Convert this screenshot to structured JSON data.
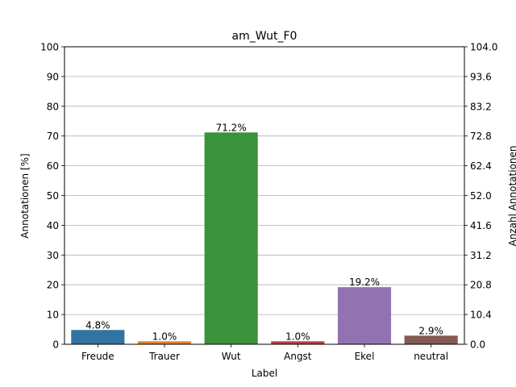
{
  "chart_data": {
    "type": "bar",
    "title": "am_Wut_F0",
    "xlabel": "Label",
    "ylabel": "Annotationen [%]",
    "ylabel_right": "Anzahl Annotationen",
    "categories": [
      "Freude",
      "Trauer",
      "Wut",
      "Angst",
      "Ekel",
      "neutral"
    ],
    "values": [
      4.8,
      1.0,
      71.2,
      1.0,
      19.2,
      2.9
    ],
    "value_labels": [
      "4.8%",
      "1.0%",
      "71.2%",
      "1.0%",
      "19.2%",
      "2.9%"
    ],
    "colors": [
      "#3274a1",
      "#e1812c",
      "#3a923a",
      "#c03d3e",
      "#9372b2",
      "#845b53"
    ],
    "ylim": [
      0,
      100
    ],
    "yticks": [
      "0",
      "10",
      "20",
      "30",
      "40",
      "50",
      "60",
      "70",
      "80",
      "90",
      "100"
    ],
    "ylim_right": [
      0,
      104
    ],
    "yticks_right": [
      "0.0",
      "10.4",
      "20.8",
      "31.2",
      "41.6",
      "52.0",
      "62.4",
      "72.8",
      "83.2",
      "93.6",
      "104.0"
    ],
    "grid": true,
    "grid_axis": "y"
  }
}
